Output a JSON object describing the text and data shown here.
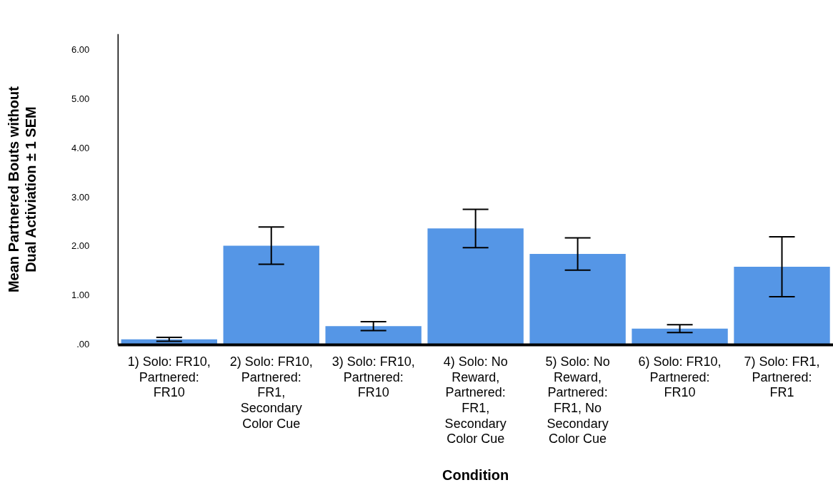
{
  "chart_data": {
    "type": "bar",
    "xlabel": "Condition",
    "ylabel": "Mean Partnered Bouts without Dual Activiation ± 1 SEM",
    "categories": [
      "1) Solo: FR10, Partnered: FR10",
      "2) Solo: FR10, Partnered: FR1, Secondary Color Cue",
      "3) Solo: FR10, Partnered: FR10",
      "4) Solo: No Reward, Partnered: FR1, Secondary Color Cue",
      "5) Solo: No Reward, Partnered: FR1, No Secondary Color Cue",
      "6) Solo: FR10, Partnered: FR10",
      "7) Solo: FR1, Partnered: FR1"
    ],
    "values": [
      0.11,
      2.02,
      0.38,
      2.37,
      1.85,
      0.33,
      1.59
    ],
    "errors": [
      0.04,
      0.38,
      0.09,
      0.39,
      0.33,
      0.08,
      0.61
    ],
    "color": "#5596e6",
    "ylim": [
      0,
      6.33
    ],
    "yticks": [
      {
        "value": 0,
        "label": ".00"
      },
      {
        "value": 1,
        "label": "1.00"
      },
      {
        "value": 2,
        "label": "2.00"
      },
      {
        "value": 3,
        "label": "3.00"
      },
      {
        "value": 4,
        "label": "4.00"
      },
      {
        "value": 5,
        "label": "5.00"
      },
      {
        "value": 6,
        "label": "6.00"
      }
    ],
    "grid": false,
    "legend": false
  }
}
